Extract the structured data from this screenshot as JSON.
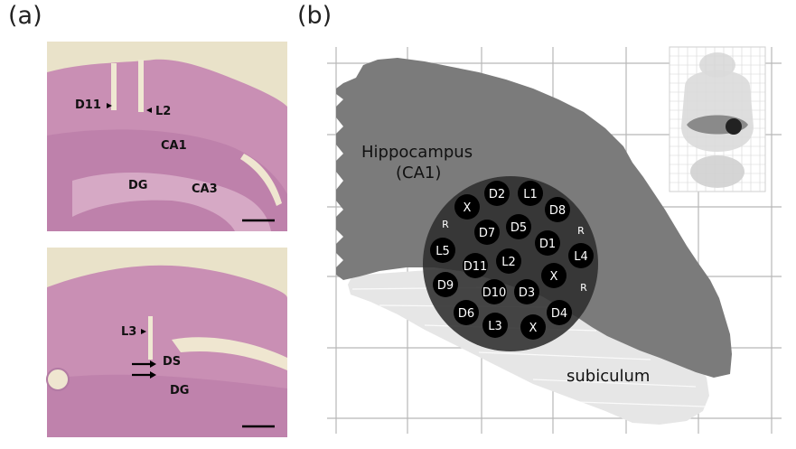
{
  "figure": {
    "panel_a_label": "(a)",
    "panel_b_label": "(b)"
  },
  "panel_a": {
    "top_section": {
      "labels": {
        "d11": "D11",
        "l2": "L2",
        "ca1": "CA1",
        "dg": "DG",
        "ca3": "CA3"
      }
    },
    "bottom_section": {
      "labels": {
        "l3": "L3",
        "ds": "DS",
        "dg": "DG"
      }
    },
    "colors": {
      "tissue": "#c98fb4",
      "tissue_dark": "#a86597",
      "background": "#e8e1c8"
    }
  },
  "panel_b": {
    "region_labels": {
      "hippocampus_line1": "Hippocampus",
      "hippocampus_line2": "(CA1)",
      "subiculum": "subiculum"
    },
    "electrodes": {
      "d1": "D1",
      "d2": "D2",
      "d3": "D3",
      "d4": "D4",
      "d5": "D5",
      "d6": "D6",
      "d7": "D7",
      "d8": "D8",
      "d9": "D9",
      "d10": "D10",
      "d11": "D11",
      "l1": "L1",
      "l2": "L2",
      "l3": "L3",
      "l4": "L4",
      "l5": "L5",
      "x": "X",
      "r": "R"
    },
    "colors": {
      "hippocampus": "#7b7b7b",
      "subiculum": "#e6e6e6",
      "array": "#3d3d3d",
      "electrode": "#000000",
      "grid": "#b8b8b8"
    }
  }
}
